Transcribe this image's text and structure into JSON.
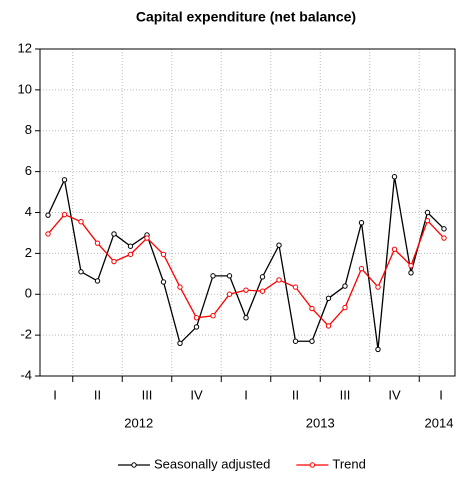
{
  "chart_data": {
    "type": "line",
    "title": "Capital expenditure (net balance)",
    "categories": [
      "I",
      null,
      null,
      "II",
      null,
      null,
      "III",
      null,
      null,
      "IV",
      null,
      null,
      "I",
      null,
      null,
      "II",
      null,
      null,
      "III",
      null,
      null,
      "IV",
      null,
      null,
      "I"
    ],
    "year_labels": [
      "2012",
      "2013",
      "2014"
    ],
    "series": [
      {
        "name": "Seasonally adjusted",
        "color": "#000000",
        "values": [
          3.87,
          5.6,
          1.1,
          0.65,
          2.95,
          2.35,
          2.9,
          0.6,
          -2.4,
          -1.6,
          0.9,
          0.9,
          -1.15,
          0.85,
          2.4,
          -2.3,
          -2.3,
          -0.2,
          0.4,
          3.5,
          -2.7,
          5.75,
          1.05,
          4.0,
          3.2
        ]
      },
      {
        "name": "Trend",
        "color": "#ff0000",
        "values": [
          2.95,
          3.9,
          3.55,
          2.5,
          1.6,
          1.95,
          2.75,
          1.95,
          0.35,
          -1.15,
          -1.05,
          0.0,
          0.2,
          0.15,
          0.7,
          0.35,
          -0.7,
          -1.55,
          -0.65,
          1.25,
          0.35,
          2.2,
          1.4,
          3.6,
          2.75
        ]
      }
    ],
    "ylim": [
      -4,
      12
    ],
    "yticks": [
      -4,
      -2,
      0,
      2,
      4,
      6,
      8,
      10,
      12
    ],
    "grid": true,
    "legend": "bottom"
  }
}
